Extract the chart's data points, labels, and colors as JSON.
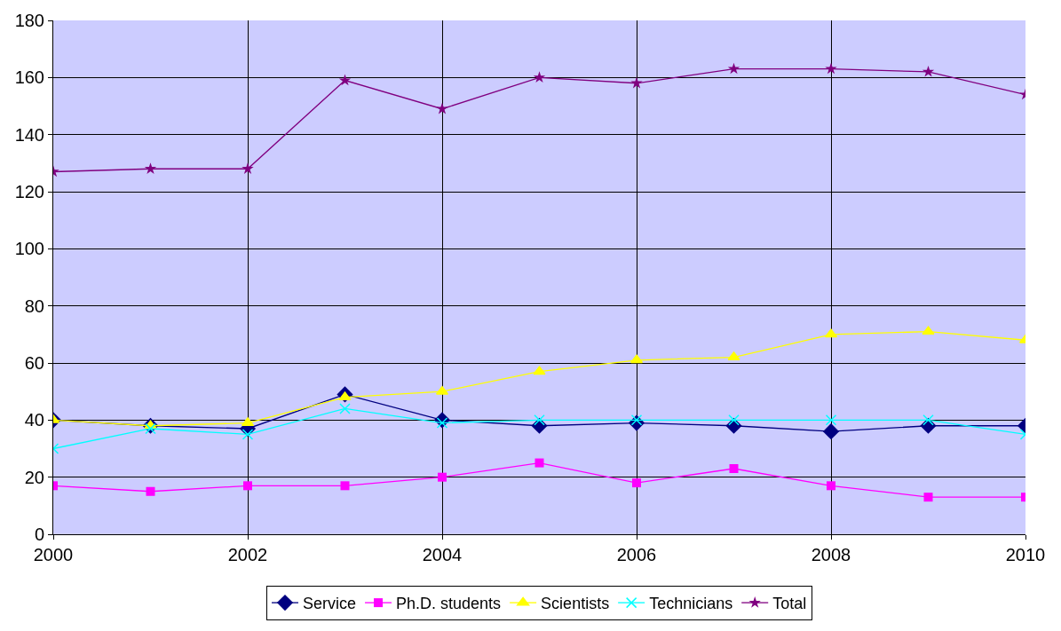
{
  "chart_data": {
    "type": "line",
    "x": [
      2000,
      2001,
      2002,
      2003,
      2004,
      2005,
      2006,
      2007,
      2008,
      2009,
      2010
    ],
    "xlim": [
      2000,
      2010
    ],
    "xticks": [
      2000,
      2002,
      2004,
      2006,
      2008,
      2010
    ],
    "ylim": [
      0,
      180
    ],
    "yticks": [
      0,
      20,
      40,
      60,
      80,
      100,
      120,
      140,
      160,
      180
    ],
    "grid": true,
    "legend": "bottom",
    "series": [
      {
        "name": "Service",
        "color": "#000080",
        "marker": "diamond",
        "values": [
          40,
          38,
          37,
          49,
          40,
          38,
          39,
          38,
          36,
          38,
          38
        ]
      },
      {
        "name": "Ph.D. students",
        "color": "#ff00ff",
        "marker": "square",
        "values": [
          17,
          15,
          17,
          17,
          20,
          25,
          18,
          23,
          17,
          13,
          13
        ]
      },
      {
        "name": "Scientists",
        "color": "#ffff00",
        "marker": "triangle",
        "values": [
          40,
          38,
          39,
          48,
          50,
          57,
          61,
          62,
          70,
          71,
          68
        ]
      },
      {
        "name": "Technicians",
        "color": "#00ffff",
        "marker": "cross",
        "values": [
          30,
          37,
          35,
          44,
          39,
          40,
          40,
          40,
          40,
          40,
          35
        ]
      },
      {
        "name": "Total",
        "color": "#800080",
        "marker": "star",
        "values": [
          127,
          128,
          128,
          159,
          149,
          160,
          158,
          163,
          163,
          162,
          154
        ]
      }
    ]
  }
}
